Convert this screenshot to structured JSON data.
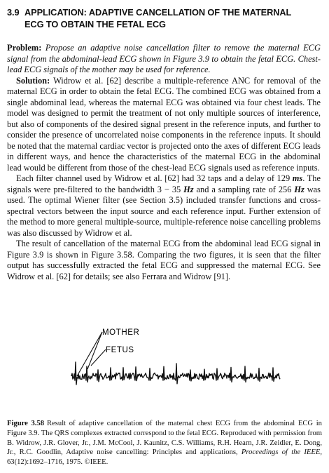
{
  "section": {
    "number": "3.9",
    "title_line1": "APPLICATION: ADAPTIVE CANCELLATION OF THE MATERNAL",
    "title_line2": "ECG TO OBTAIN THE FETAL ECG"
  },
  "problem": {
    "label": "Problem:",
    "text": "Propose an adaptive noise cancellation filter to remove the maternal ECG signal from the abdominal-lead ECG shown in Figure 3.9 to obtain the fetal ECG. Chest-lead ECG signals of the mother may be used for reference."
  },
  "solution": {
    "label": "Solution:",
    "text": "Widrow et al. [62] describe a multiple-reference ANC for removal of the maternal ECG in order to obtain the fetal ECG. The combined ECG was obtained from a single abdominal lead, whereas the maternal ECG was obtained via four chest leads. The model was designed to permit the treatment of not only multiple sources of interference, but also of components of the desired signal present in the reference inputs, and further to consider the presence of uncorrelated noise components in the reference inputs. It should be noted that the maternal cardiac vector is projected onto the axes of different ECG leads in different ways, and hence the characteristics of the maternal ECG in the abdominal lead would be different from those of the chest-lead ECG signals used as reference inputs."
  },
  "para2": {
    "part1": "Each filter channel used by Widrow et al. [62] had 32 taps and a delay of 129 ",
    "unit_ms": "ms",
    "part2": ". The signals were pre-filtered to the bandwidth 3 − 35 ",
    "unit_hz1": "Hz",
    "part3": " and a sampling rate of 256 ",
    "unit_hz2": "Hz",
    "part4": " was used. The optimal Wiener filter (see Section 3.5) included transfer functions and cross-spectral vectors between the input source and each reference input. Further extension of the method to more general multiple-source, multiple-reference noise cancelling problems was also discussed by Widrow et al."
  },
  "para3": {
    "text": "The result of cancellation of the maternal ECG from the abdominal lead ECG signal in Figure 3.9 is shown in Figure 3.58. Comparing the two figures, it is seen that the filter output has successfully extracted the fetal ECG and suppressed the maternal ECG. See Widrow et al. [62] for details; see also Ferrara and Widrow [91]."
  },
  "figure": {
    "label_mother": "MOTHER",
    "label_fetus": "FETUS",
    "trace_color": "#111111"
  },
  "caption": {
    "label": "Figure 3.58",
    "text1": "Result of adaptive cancellation of the maternal chest ECG from the abdominal ECG in Figure 3.9. The QRS complexes extracted correspond to the fetal ECG. Reproduced with permission from B. Widrow, J.R. Glover, Jr., J.M. McCool, J. Kaunitz, C.S. Williams, R.H. Hearn, J.R. Zeidler, E. Dong, Jr., R.C. Goodlin, Adaptive noise cancelling: Principles and applications, ",
    "journal": "Proceedings of the IEEE",
    "text2": ", 63(12):1692–1716, 1975. ©IEEE."
  }
}
